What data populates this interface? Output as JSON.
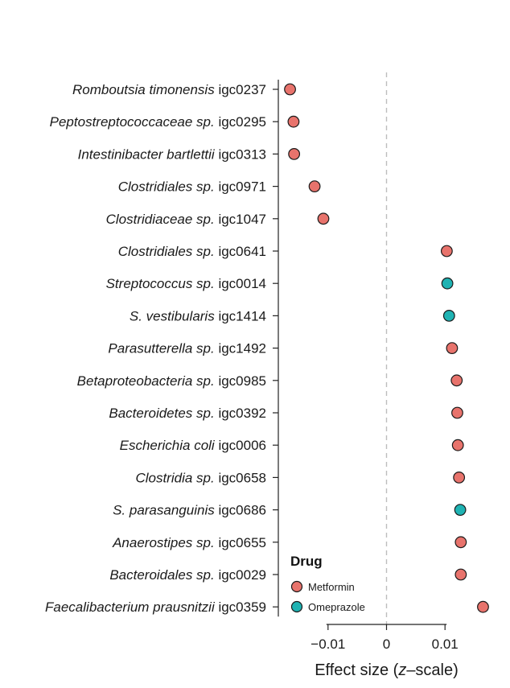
{
  "chart_data": {
    "type": "scatter",
    "title": "",
    "xlabel_parts": [
      "Effect size (",
      "z",
      "–scale)"
    ],
    "ylabel": "",
    "xlim": [
      -0.0185,
      0.0185
    ],
    "xticks": [
      {
        "value": -0.01,
        "label": "−0.01"
      },
      {
        "value": 0,
        "label": "0"
      },
      {
        "value": 0.01,
        "label": "0.01"
      }
    ],
    "reference_line": 0,
    "legend": {
      "title": "Drug",
      "position": "bottom-center",
      "entries": [
        {
          "name": "Metformin",
          "color": "#e8736c"
        },
        {
          "name": "Omeprazole",
          "color": "#1fb3b3"
        }
      ]
    },
    "categories": [
      {
        "italic": "Romboutsia timonensis",
        "plain": " igc0237"
      },
      {
        "italic": "Peptostreptococcaceae sp.",
        "plain": " igc0295"
      },
      {
        "italic": "Intestinibacter bartlettii",
        "plain": " igc0313"
      },
      {
        "italic": "Clostridiales sp.",
        "plain": " igc0971"
      },
      {
        "italic": "Clostridiaceae sp.",
        "plain": " igc1047"
      },
      {
        "italic": "Clostridiales sp.",
        "plain": " igc0641"
      },
      {
        "italic": "Streptococcus sp.",
        "plain": " igc0014"
      },
      {
        "italic": "S. vestibularis",
        "plain": " igc1414"
      },
      {
        "italic": "Parasutterella sp.",
        "plain": " igc1492"
      },
      {
        "italic": "Betaproteobacteria sp.",
        "plain": " igc0985"
      },
      {
        "italic": "Bacteroidetes sp.",
        "plain": " igc0392"
      },
      {
        "italic": "Escherichia coli",
        "plain": " igc0006"
      },
      {
        "italic": "Clostridia sp.",
        "plain": " igc0658"
      },
      {
        "italic": "S. parasanguinis",
        "plain": " igc0686"
      },
      {
        "italic": "Anaerostipes sp.",
        "plain": " igc0655"
      },
      {
        "italic": "Bacteroidales sp.",
        "plain": " igc0029"
      },
      {
        "italic": "Faecalibacterium prausnitzii",
        "plain": " igc0359"
      }
    ],
    "points": [
      {
        "value": -0.0165,
        "drug": "Metformin"
      },
      {
        "value": -0.0159,
        "drug": "Metformin"
      },
      {
        "value": -0.0158,
        "drug": "Metformin"
      },
      {
        "value": -0.0123,
        "drug": "Metformin"
      },
      {
        "value": -0.0108,
        "drug": "Metformin"
      },
      {
        "value": 0.0103,
        "drug": "Metformin"
      },
      {
        "value": 0.0104,
        "drug": "Omeprazole"
      },
      {
        "value": 0.0107,
        "drug": "Omeprazole"
      },
      {
        "value": 0.0112,
        "drug": "Metformin"
      },
      {
        "value": 0.012,
        "drug": "Metformin"
      },
      {
        "value": 0.0121,
        "drug": "Metformin"
      },
      {
        "value": 0.0122,
        "drug": "Metformin"
      },
      {
        "value": 0.0124,
        "drug": "Metformin"
      },
      {
        "value": 0.0126,
        "drug": "Omeprazole"
      },
      {
        "value": 0.0127,
        "drug": "Metformin"
      },
      {
        "value": 0.0127,
        "drug": "Metformin"
      },
      {
        "value": 0.0165,
        "drug": "Metformin"
      }
    ]
  }
}
